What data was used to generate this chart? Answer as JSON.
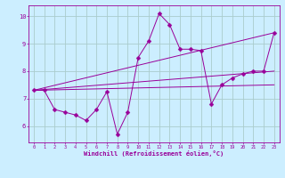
{
  "xlabel": "Windchill (Refroidissement éolien,°C)",
  "ylabel": "",
  "bg_color": "#cceeff",
  "grid_color": "#aacccc",
  "line_color": "#990099",
  "x_ticks": [
    0,
    1,
    2,
    3,
    4,
    5,
    6,
    7,
    8,
    9,
    10,
    11,
    12,
    13,
    14,
    15,
    16,
    17,
    18,
    19,
    20,
    21,
    22,
    23
  ],
  "y_ticks": [
    6,
    7,
    8,
    9,
    10
  ],
  "xlim": [
    -0.5,
    23.5
  ],
  "ylim": [
    5.4,
    10.4
  ],
  "series": [
    {
      "x": [
        0,
        1,
        2,
        3,
        4,
        5,
        6,
        7,
        8,
        9,
        10,
        11,
        12,
        13,
        14,
        15,
        16,
        17,
        18,
        19,
        20,
        21,
        22,
        23
      ],
      "y": [
        7.3,
        7.3,
        6.6,
        6.5,
        6.4,
        6.2,
        6.6,
        7.25,
        5.7,
        6.5,
        8.5,
        9.1,
        10.1,
        9.7,
        8.8,
        8.8,
        8.75,
        6.8,
        7.5,
        7.75,
        7.9,
        8.0,
        8.0,
        9.4
      ],
      "marker": "D",
      "markersize": 2.5
    },
    {
      "x": [
        0,
        23
      ],
      "y": [
        7.3,
        9.4
      ],
      "marker": null,
      "markersize": 0
    },
    {
      "x": [
        0,
        23
      ],
      "y": [
        7.3,
        7.5
      ],
      "marker": null,
      "markersize": 0
    },
    {
      "x": [
        0,
        23
      ],
      "y": [
        7.3,
        8.0
      ],
      "marker": null,
      "markersize": 0
    }
  ]
}
